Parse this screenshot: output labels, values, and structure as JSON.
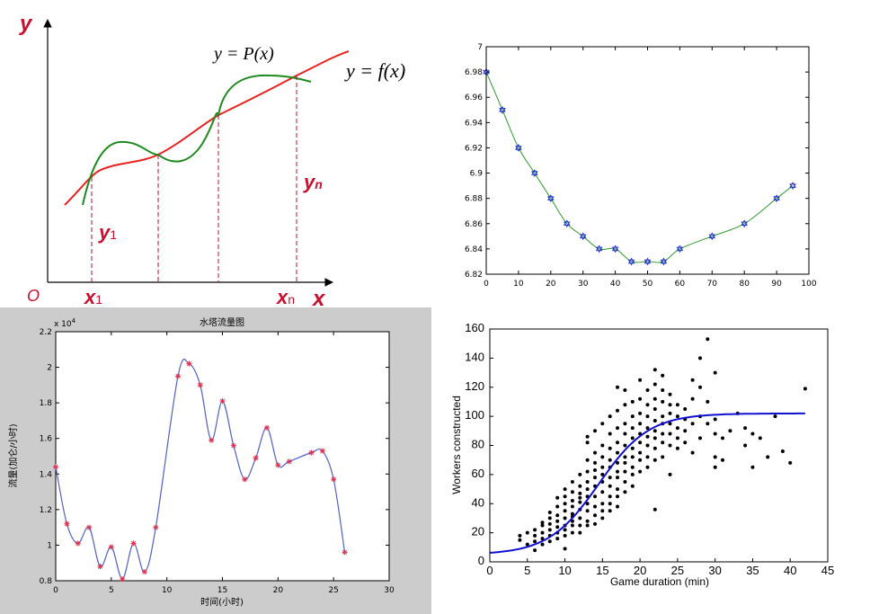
{
  "chart_data": [
    {
      "type": "line",
      "labels": {
        "y_axis": "y",
        "x_axis": "x",
        "origin": "O",
        "px": "y = P(x)",
        "fx": "y = f(x)",
        "y1": "y",
        "y1_sub": "1",
        "yn": "y",
        "yn_sub": "n",
        "x1": "x",
        "x1_sub": "1",
        "xn": "x",
        "xn_sub": "n"
      },
      "colors": {
        "f": "#e8231f",
        "p": "#1e8a1e",
        "label": "#c8102e"
      }
    },
    {
      "type": "line",
      "x": [
        0,
        5,
        10,
        15,
        20,
        25,
        30,
        35,
        40,
        45,
        50,
        55,
        60,
        70,
        80,
        90,
        95
      ],
      "values": [
        6.98,
        6.95,
        6.92,
        6.9,
        6.88,
        6.86,
        6.85,
        6.84,
        6.84,
        6.83,
        6.83,
        6.83,
        6.84,
        6.85,
        6.86,
        6.88,
        6.89
      ],
      "xlim": [
        0,
        100
      ],
      "ylim": [
        6.82,
        7.0
      ],
      "xticks": [
        "0",
        "10",
        "20",
        "30",
        "40",
        "50",
        "60",
        "70",
        "80",
        "90",
        "100"
      ],
      "yticks": [
        "6.82",
        "6.84",
        "6.86",
        "6.88",
        "6.9",
        "6.92",
        "6.94",
        "6.96",
        "6.98",
        "7"
      ],
      "colors": {
        "line": "#2e9a2e",
        "marker": "#2233cc"
      }
    },
    {
      "type": "line",
      "title": "水塔流量图",
      "xlabel": "时间(小时)",
      "ylabel": "流量(加仑/小时)",
      "yscale_label": "x 10",
      "yscale_exp": "4",
      "x": [
        0,
        1,
        2,
        3,
        4,
        5,
        6,
        7,
        8,
        9,
        11,
        12,
        13,
        14,
        15,
        16,
        17,
        18,
        19,
        20,
        21,
        23,
        24,
        25,
        26
      ],
      "values": [
        1.44,
        1.12,
        1.01,
        1.1,
        0.88,
        0.99,
        0.81,
        1.01,
        0.85,
        1.1,
        1.95,
        2.02,
        1.9,
        1.59,
        1.81,
        1.56,
        1.37,
        1.49,
        1.66,
        1.45,
        1.47,
        1.52,
        1.53,
        1.37,
        0.96
      ],
      "xlim": [
        0,
        30
      ],
      "ylim": [
        0.8,
        2.2
      ],
      "xticks": [
        "0",
        "5",
        "10",
        "15",
        "20",
        "25",
        "30"
      ],
      "yticks": [
        "0.8",
        "1",
        "1.2",
        "1.4",
        "1.6",
        "1.8",
        "2",
        "2.2"
      ],
      "colors": {
        "line": "#5060c8",
        "marker": "#e03050",
        "bg": "#cccccc"
      }
    },
    {
      "type": "scatter",
      "xlabel": "Game duration (min)",
      "ylabel": "Workers constructed",
      "xlim": [
        0,
        45
      ],
      "ylim": [
        0,
        160
      ],
      "xticks": [
        "0",
        "5",
        "10",
        "15",
        "20",
        "25",
        "30",
        "35",
        "40",
        "45"
      ],
      "yticks": [
        "0",
        "20",
        "40",
        "60",
        "80",
        "100",
        "120",
        "140",
        "160"
      ],
      "curve": {
        "L": 102,
        "k": 0.3,
        "x0": 14.5,
        "base": 5,
        "xmax": 42
      },
      "points": [
        [
          4,
          18
        ],
        [
          4,
          15
        ],
        [
          5,
          12
        ],
        [
          5,
          20
        ],
        [
          6,
          8
        ],
        [
          6,
          18
        ],
        [
          6,
          22
        ],
        [
          6,
          14
        ],
        [
          7,
          16
        ],
        [
          7,
          25
        ],
        [
          7,
          20
        ],
        [
          7,
          27
        ],
        [
          7,
          12
        ],
        [
          8,
          22
        ],
        [
          8,
          30
        ],
        [
          8,
          18
        ],
        [
          8,
          26
        ],
        [
          8,
          14
        ],
        [
          8,
          34
        ],
        [
          9,
          20
        ],
        [
          9,
          28
        ],
        [
          9,
          32
        ],
        [
          9,
          38
        ],
        [
          9,
          24
        ],
        [
          9,
          44
        ],
        [
          9,
          16
        ],
        [
          10,
          25
        ],
        [
          10,
          30
        ],
        [
          10,
          35
        ],
        [
          10,
          40
        ],
        [
          10,
          22
        ],
        [
          10,
          45
        ],
        [
          10,
          50
        ],
        [
          10,
          9
        ],
        [
          10,
          18
        ],
        [
          11,
          28
        ],
        [
          11,
          33
        ],
        [
          11,
          38
        ],
        [
          11,
          42
        ],
        [
          11,
          48
        ],
        [
          11,
          25
        ],
        [
          11,
          55
        ],
        [
          11,
          20
        ],
        [
          11,
          31
        ],
        [
          12,
          30
        ],
        [
          12,
          36
        ],
        [
          12,
          41
        ],
        [
          12,
          47
        ],
        [
          12,
          52
        ],
        [
          12,
          25
        ],
        [
          12,
          60
        ],
        [
          12,
          20
        ],
        [
          12,
          44
        ],
        [
          13,
          35
        ],
        [
          13,
          40
        ],
        [
          13,
          45
        ],
        [
          13,
          50
        ],
        [
          13,
          55
        ],
        [
          13,
          28
        ],
        [
          13,
          62
        ],
        [
          13,
          25
        ],
        [
          13,
          70
        ],
        [
          13,
          82
        ],
        [
          13,
          86
        ],
        [
          14,
          38
        ],
        [
          14,
          45
        ],
        [
          14,
          52
        ],
        [
          14,
          58
        ],
        [
          14,
          63
        ],
        [
          14,
          32
        ],
        [
          14,
          68
        ],
        [
          14,
          26
        ],
        [
          14,
          75
        ],
        [
          14,
          90
        ],
        [
          15,
          40
        ],
        [
          15,
          48
        ],
        [
          15,
          55
        ],
        [
          15,
          60
        ],
        [
          15,
          65
        ],
        [
          15,
          35
        ],
        [
          15,
          72
        ],
        [
          15,
          30
        ],
        [
          15,
          80
        ],
        [
          15,
          95
        ],
        [
          16,
          45
        ],
        [
          16,
          52
        ],
        [
          16,
          58
        ],
        [
          16,
          65
        ],
        [
          16,
          70
        ],
        [
          16,
          40
        ],
        [
          16,
          78
        ],
        [
          16,
          35
        ],
        [
          16,
          88
        ],
        [
          16,
          100
        ],
        [
          17,
          50
        ],
        [
          17,
          58
        ],
        [
          17,
          62
        ],
        [
          17,
          68
        ],
        [
          17,
          75
        ],
        [
          17,
          45
        ],
        [
          17,
          82
        ],
        [
          17,
          38
        ],
        [
          17,
          92
        ],
        [
          17,
          104
        ],
        [
          17,
          120
        ],
        [
          18,
          55
        ],
        [
          18,
          62
        ],
        [
          18,
          68
        ],
        [
          18,
          72
        ],
        [
          18,
          80
        ],
        [
          18,
          48
        ],
        [
          18,
          88
        ],
        [
          18,
          95
        ],
        [
          18,
          108
        ],
        [
          18,
          118
        ],
        [
          19,
          60
        ],
        [
          19,
          65
        ],
        [
          19,
          72
        ],
        [
          19,
          78
        ],
        [
          19,
          85
        ],
        [
          19,
          52
        ],
        [
          19,
          92
        ],
        [
          19,
          100
        ],
        [
          19,
          110
        ],
        [
          20,
          62
        ],
        [
          20,
          70
        ],
        [
          20,
          75
        ],
        [
          20,
          82
        ],
        [
          20,
          88
        ],
        [
          20,
          95
        ],
        [
          20,
          102
        ],
        [
          20,
          112
        ],
        [
          20,
          125
        ],
        [
          21,
          65
        ],
        [
          21,
          72
        ],
        [
          21,
          80
        ],
        [
          21,
          86
        ],
        [
          21,
          92
        ],
        [
          21,
          100
        ],
        [
          21,
          108
        ],
        [
          21,
          118
        ],
        [
          22,
          70
        ],
        [
          22,
          78
        ],
        [
          22,
          85
        ],
        [
          22,
          90
        ],
        [
          22,
          97
        ],
        [
          22,
          105
        ],
        [
          22,
          112
        ],
        [
          22,
          122
        ],
        [
          22,
          132
        ],
        [
          22,
          36
        ],
        [
          23,
          72
        ],
        [
          23,
          82
        ],
        [
          23,
          88
        ],
        [
          23,
          95
        ],
        [
          23,
          100
        ],
        [
          23,
          110
        ],
        [
          23,
          118
        ],
        [
          23,
          128
        ],
        [
          24,
          60
        ],
        [
          24,
          80
        ],
        [
          24,
          88
        ],
        [
          24,
          95
        ],
        [
          24,
          102
        ],
        [
          24,
          108
        ],
        [
          24,
          115
        ],
        [
          25,
          78
        ],
        [
          25,
          85
        ],
        [
          25,
          92
        ],
        [
          25,
          100
        ],
        [
          25,
          108
        ],
        [
          26,
          82
        ],
        [
          26,
          90
        ],
        [
          26,
          98
        ],
        [
          26,
          105
        ],
        [
          27,
          75
        ],
        [
          27,
          95
        ],
        [
          27,
          112
        ],
        [
          27,
          125
        ],
        [
          28,
          85
        ],
        [
          28,
          100
        ],
        [
          28,
          120
        ],
        [
          28,
          140
        ],
        [
          29,
          95
        ],
        [
          29,
          110
        ],
        [
          29,
          153
        ],
        [
          30,
          65
        ],
        [
          30,
          72
        ],
        [
          30,
          88
        ],
        [
          30,
          98
        ],
        [
          30,
          130
        ],
        [
          31,
          70
        ],
        [
          31,
          85
        ],
        [
          32,
          90
        ],
        [
          33,
          102
        ],
        [
          34,
          80
        ],
        [
          34,
          92
        ],
        [
          35,
          65
        ],
        [
          35,
          88
        ],
        [
          36,
          85
        ],
        [
          37,
          72
        ],
        [
          38,
          100
        ],
        [
          39,
          76
        ],
        [
          40,
          68
        ],
        [
          42,
          119
        ]
      ],
      "colors": {
        "curve": "#1010d0",
        "point": "#000000"
      }
    }
  ]
}
